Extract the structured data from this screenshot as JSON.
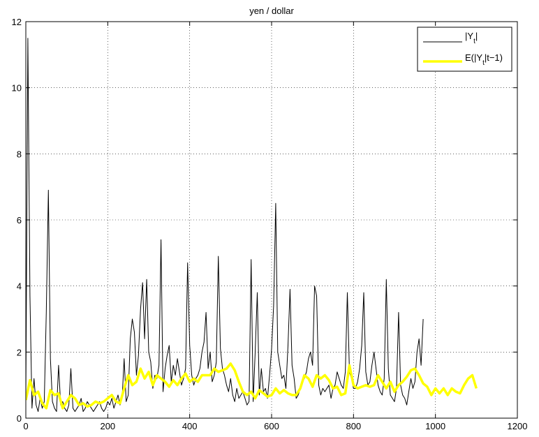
{
  "chart_data": {
    "type": "line",
    "title": "yen / dollar",
    "xlabel": "",
    "ylabel": "",
    "xlim": [
      0,
      1200
    ],
    "ylim": [
      0,
      12
    ],
    "xticks": [
      0,
      200,
      400,
      600,
      800,
      1000,
      1200
    ],
    "yticks": [
      0,
      2,
      4,
      6,
      8,
      10,
      12
    ],
    "xtick_labels": [
      "0",
      "200",
      "400",
      "600",
      "800",
      "1000",
      "1200"
    ],
    "ytick_labels": [
      "0",
      "2",
      "4",
      "6",
      "8",
      "10",
      "12"
    ],
    "grid": true,
    "legend_position": "top-right",
    "series": [
      {
        "name": "|Y_t|",
        "legend_main": "|Y",
        "legend_sub": "t",
        "legend_tail": "|",
        "color": "#000000",
        "x_start": 0,
        "x_step": 5,
        "values": [
          0.6,
          11.5,
          3.7,
          0.3,
          1.2,
          0.4,
          0.2,
          0.6,
          0.3,
          0.5,
          3.2,
          6.9,
          1.8,
          0.5,
          0.3,
          0.2,
          1.6,
          0.4,
          0.5,
          0.3,
          0.2,
          0.4,
          1.5,
          0.3,
          0.2,
          0.3,
          0.4,
          0.6,
          0.2,
          0.3,
          0.5,
          0.4,
          0.3,
          0.2,
          0.3,
          0.4,
          0.5,
          0.3,
          0.2,
          0.3,
          0.5,
          0.4,
          0.6,
          0.3,
          0.5,
          0.7,
          0.4,
          0.6,
          1.8,
          0.5,
          0.7,
          2.4,
          3.0,
          2.6,
          1.3,
          1.9,
          3.3,
          4.1,
          2.4,
          4.2,
          2.0,
          1.7,
          0.9,
          1.3,
          1.2,
          1.6,
          5.4,
          0.8,
          1.5,
          1.9,
          2.2,
          1.1,
          1.6,
          1.3,
          1.8,
          1.4,
          1.0,
          1.2,
          1.5,
          4.7,
          2.2,
          1.3,
          1.0,
          1.2,
          1.3,
          1.5,
          2.0,
          2.3,
          3.2,
          1.5,
          2.0,
          1.1,
          1.3,
          1.7,
          4.9,
          2.1,
          1.5,
          1.3,
          1.0,
          0.8,
          1.2,
          0.7,
          0.5,
          0.9,
          0.6,
          0.7,
          0.8,
          0.6,
          0.4,
          0.5,
          4.8,
          0.5,
          2.0,
          3.8,
          0.7,
          1.5,
          0.8,
          0.9,
          0.6,
          1.3,
          2.1,
          3.4,
          6.5,
          2.0,
          1.6,
          1.2,
          1.3,
          0.9,
          2.2,
          3.9,
          1.6,
          1.2,
          0.6,
          0.7,
          0.9,
          1.1,
          1.2,
          1.4,
          1.8,
          2.0,
          1.6,
          4.0,
          3.7,
          1.0,
          0.7,
          0.9,
          0.8,
          0.9,
          1.0,
          0.6,
          0.9,
          1.0,
          1.4,
          1.2,
          1.0,
          0.9,
          1.4,
          3.8,
          1.4,
          1.2,
          0.9,
          0.9,
          1.1,
          1.5,
          2.2,
          3.8,
          1.4,
          1.0,
          1.1,
          1.6,
          2.0,
          1.5,
          1.0,
          0.8,
          0.7,
          1.2,
          4.2,
          1.5,
          0.7,
          0.6,
          0.5,
          0.9,
          3.2,
          1.0,
          0.7,
          0.6,
          0.4,
          0.8,
          1.2,
          0.9,
          1.1,
          2.0,
          2.4,
          1.6,
          3.0
        ]
      },
      {
        "name": "E(|Y_t|t-1)",
        "legend_main": "E(|Y",
        "legend_sub": "t",
        "legend_tail": "|t−1)",
        "color": "#ffff00",
        "x_start": 0,
        "x_step": 10,
        "values": [
          0.55,
          1.15,
          0.7,
          0.8,
          0.45,
          0.3,
          0.85,
          0.7,
          0.75,
          0.3,
          0.5,
          0.7,
          0.6,
          0.4,
          0.45,
          0.35,
          0.4,
          0.5,
          0.45,
          0.5,
          0.6,
          0.7,
          0.5,
          0.45,
          0.9,
          1.3,
          1.0,
          1.1,
          1.5,
          1.2,
          1.4,
          1.0,
          1.3,
          1.2,
          1.1,
          0.95,
          1.15,
          1.0,
          1.2,
          1.35,
          1.1,
          1.2,
          1.1,
          1.3,
          1.3,
          1.3,
          1.5,
          1.4,
          1.45,
          1.5,
          1.65,
          1.45,
          1.1,
          0.8,
          0.7,
          0.8,
          0.6,
          0.85,
          0.75,
          0.65,
          0.7,
          0.9,
          0.75,
          0.85,
          0.75,
          0.7,
          0.7,
          0.9,
          1.3,
          1.2,
          0.95,
          1.3,
          1.2,
          1.3,
          1.15,
          0.9,
          0.95,
          0.7,
          0.75,
          1.6,
          1.0,
          0.9,
          0.95,
          1.0,
          0.95,
          1.0,
          1.3,
          1.1,
          0.9,
          1.1,
          0.8,
          1.0,
          1.1,
          1.25,
          1.45,
          1.5,
          1.3,
          1.05,
          0.95,
          0.7,
          0.9,
          0.75,
          0.9,
          0.7,
          0.9,
          0.8,
          0.75,
          1.0,
          1.2,
          1.3,
          0.9
        ]
      }
    ]
  }
}
